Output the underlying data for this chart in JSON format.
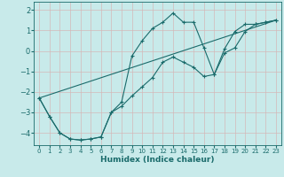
{
  "xlabel": "Humidex (Indice chaleur)",
  "background_color": "#c8eaea",
  "grid_color": "#b0d8d8",
  "line_color": "#1a6b6b",
  "xlim": [
    -0.5,
    23.5
  ],
  "ylim": [
    -4.6,
    2.4
  ],
  "yticks": [
    -4,
    -3,
    -2,
    -1,
    0,
    1,
    2
  ],
  "xticks": [
    0,
    1,
    2,
    3,
    4,
    5,
    6,
    7,
    8,
    9,
    10,
    11,
    12,
    13,
    14,
    15,
    16,
    17,
    18,
    19,
    20,
    21,
    22,
    23
  ],
  "curve1_x": [
    0,
    1,
    2,
    3,
    4,
    5,
    6,
    7,
    8,
    9,
    10,
    11,
    12,
    13,
    14,
    15,
    16,
    17,
    18,
    19,
    20,
    21,
    22,
    23
  ],
  "curve1_y": [
    -2.3,
    -3.2,
    -4.0,
    -4.3,
    -4.35,
    -4.3,
    -4.2,
    -3.0,
    -2.7,
    -2.2,
    -1.75,
    -1.3,
    -0.55,
    -0.3,
    -0.55,
    -0.8,
    -1.25,
    -1.15,
    -0.1,
    0.15,
    0.95,
    1.3,
    1.4,
    1.5
  ],
  "curve2_x": [
    0,
    1,
    2,
    3,
    4,
    5,
    6,
    7,
    8,
    9,
    10,
    11,
    12,
    13,
    14,
    15,
    16,
    17,
    18,
    19,
    20,
    21,
    22,
    23
  ],
  "curve2_y": [
    -2.3,
    -3.2,
    -4.0,
    -4.3,
    -4.35,
    -4.3,
    -4.2,
    -3.0,
    -2.5,
    -0.25,
    0.5,
    1.1,
    1.4,
    1.85,
    1.4,
    1.4,
    0.15,
    -1.15,
    0.1,
    0.95,
    1.3,
    1.3,
    1.4,
    1.5
  ],
  "straight_line_x": [
    0,
    23
  ],
  "straight_line_y": [
    -2.3,
    1.5
  ]
}
